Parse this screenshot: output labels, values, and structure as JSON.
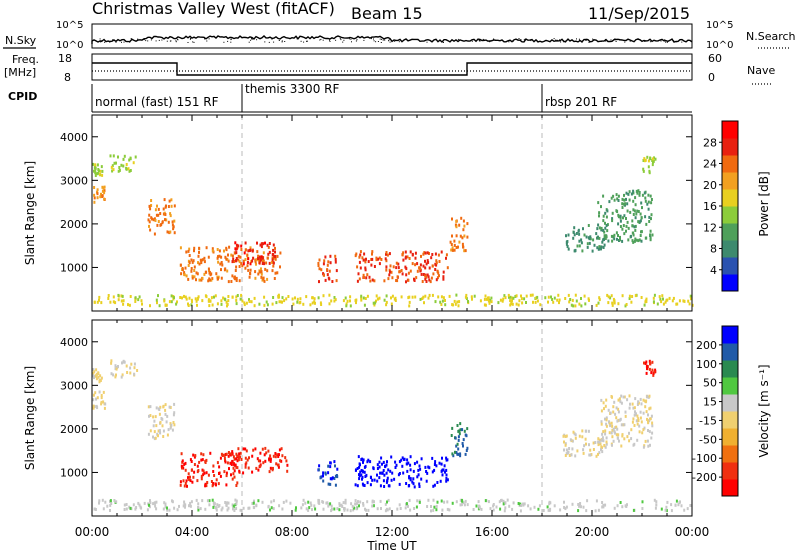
{
  "header": {
    "title": "Christmas Valley West (fitACF)",
    "beam": "Beam 15",
    "date": "11/Sep/2015"
  },
  "noise_panel": {
    "left_label": "N.Sky",
    "right_label": "N.Search",
    "left_ticks": [
      "10^5",
      "10^0"
    ],
    "right_ticks": [
      "10^5",
      "10^0"
    ]
  },
  "freq_panel": {
    "left_label_1": "Freq.",
    "left_label_2": "[MHz]",
    "right_label": "Nave",
    "left_ticks": [
      "18",
      "8"
    ],
    "right_ticks": [
      "60",
      "0"
    ]
  },
  "cpid": {
    "label": "CPID",
    "modes": [
      {
        "start_hour": 0,
        "text": "normal (fast) 151 RF"
      },
      {
        "start_hour": 6,
        "text": "themis 3300 RF"
      },
      {
        "start_hour": 18,
        "text": "rbsp 201 RF"
      }
    ]
  },
  "colors": {
    "power_scale": [
      "#0000ff",
      "#2a52b0",
      "#3d8a6e",
      "#4fa05a",
      "#8ccc3a",
      "#e8d020",
      "#f2a020",
      "#f06a10",
      "#e82010",
      "#ff0000"
    ],
    "velocity_scale": [
      "#ff0000",
      "#f03010",
      "#f07010",
      "#f0b030",
      "#f0d070",
      "#c8c8c8",
      "#50c840",
      "#2a8a50",
      "#205aa8",
      "#0000ff"
    ]
  },
  "chart_data": [
    {
      "type": "heatmap",
      "name": "power",
      "ylabel": "Slant Range [km]",
      "x_range_hours": [
        0,
        24
      ],
      "ylim": [
        0,
        4500
      ],
      "y_ticks": [
        1000,
        2000,
        3000,
        4000
      ],
      "x_ticks": [
        "00:00",
        "04:00",
        "08:00",
        "12:00",
        "16:00",
        "20:00",
        "00:00"
      ],
      "colorbar": {
        "label": "Power [dB]",
        "ticks": [
          "4",
          "8",
          "12",
          "16",
          "20",
          "24",
          "28"
        ],
        "range": [
          0,
          30
        ]
      },
      "echo_regions": [
        {
          "t0": 0.0,
          "t1": 0.5,
          "r0": 2500,
          "r1": 2900,
          "value": 20
        },
        {
          "t0": 0.0,
          "t1": 0.4,
          "r0": 3100,
          "r1": 3400,
          "value": 14
        },
        {
          "t0": 0.7,
          "t1": 1.8,
          "r0": 3200,
          "r1": 3600,
          "value": 14
        },
        {
          "t0": 2.2,
          "t1": 3.3,
          "r0": 1800,
          "r1": 2600,
          "value": 22
        },
        {
          "t0": 3.5,
          "t1": 7.5,
          "r0": 700,
          "r1": 1500,
          "value": 22
        },
        {
          "t0": 5.5,
          "t1": 7.3,
          "r0": 1100,
          "r1": 1600,
          "value": 26
        },
        {
          "t0": 9.0,
          "t1": 9.8,
          "r0": 700,
          "r1": 1300,
          "value": 24
        },
        {
          "t0": 10.5,
          "t1": 14.2,
          "r0": 700,
          "r1": 1400,
          "value": 24
        },
        {
          "t0": 14.3,
          "t1": 15.0,
          "r0": 1400,
          "r1": 2200,
          "value": 22
        },
        {
          "t0": 18.8,
          "t1": 20.5,
          "r0": 1400,
          "r1": 2000,
          "value": 8
        },
        {
          "t0": 20.2,
          "t1": 22.4,
          "r0": 1600,
          "r1": 2800,
          "value": 10
        },
        {
          "t0": 22.0,
          "t1": 22.5,
          "r0": 3200,
          "r1": 3600,
          "value": 14
        },
        {
          "t0": 0.0,
          "t1": 24.0,
          "r0": 150,
          "r1": 400,
          "value": 16
        }
      ]
    },
    {
      "type": "heatmap",
      "name": "velocity",
      "ylabel": "Slant Range [km]",
      "xlabel": "Time UT",
      "x_range_hours": [
        0,
        24
      ],
      "ylim": [
        0,
        4500
      ],
      "y_ticks": [
        1000,
        2000,
        3000,
        4000
      ],
      "x_ticks": [
        "00:00",
        "04:00",
        "08:00",
        "12:00",
        "16:00",
        "20:00",
        "00:00"
      ],
      "colorbar": {
        "label": "Velocity [m s⁻¹]",
        "ticks": [
          "-200",
          "-100",
          "-50",
          "-15",
          "15",
          "50",
          "100",
          "200"
        ],
        "range": [
          -250,
          250
        ]
      },
      "echo_regions": [
        {
          "t0": 0.0,
          "t1": 0.5,
          "r0": 2500,
          "r1": 2900,
          "value": 0
        },
        {
          "t0": 0.0,
          "t1": 0.4,
          "r0": 3100,
          "r1": 3400,
          "value": 0
        },
        {
          "t0": 0.7,
          "t1": 1.8,
          "r0": 3200,
          "r1": 3600,
          "value": 0
        },
        {
          "t0": 2.2,
          "t1": 3.3,
          "r0": 1800,
          "r1": 2600,
          "value": 0
        },
        {
          "t0": 3.5,
          "t1": 5.8,
          "r0": 700,
          "r1": 1500,
          "value": -200
        },
        {
          "t0": 5.5,
          "t1": 7.8,
          "r0": 1000,
          "r1": 1600,
          "value": -200
        },
        {
          "t0": 9.0,
          "t1": 9.8,
          "r0": 700,
          "r1": 1300,
          "value": 200
        },
        {
          "t0": 10.5,
          "t1": 14.2,
          "r0": 700,
          "r1": 1400,
          "value": 230
        },
        {
          "t0": 14.3,
          "t1": 15.0,
          "r0": 1400,
          "r1": 2200,
          "value": 150
        },
        {
          "t0": 18.8,
          "t1": 20.5,
          "r0": 1400,
          "r1": 2000,
          "value": 0
        },
        {
          "t0": 20.2,
          "t1": 22.4,
          "r0": 1600,
          "r1": 2800,
          "value": 0
        },
        {
          "t0": 22.0,
          "t1": 22.5,
          "r0": 3200,
          "r1": 3600,
          "value": -200
        },
        {
          "t0": 0.0,
          "t1": 24.0,
          "r0": 150,
          "r1": 400,
          "value": 30
        }
      ]
    }
  ]
}
